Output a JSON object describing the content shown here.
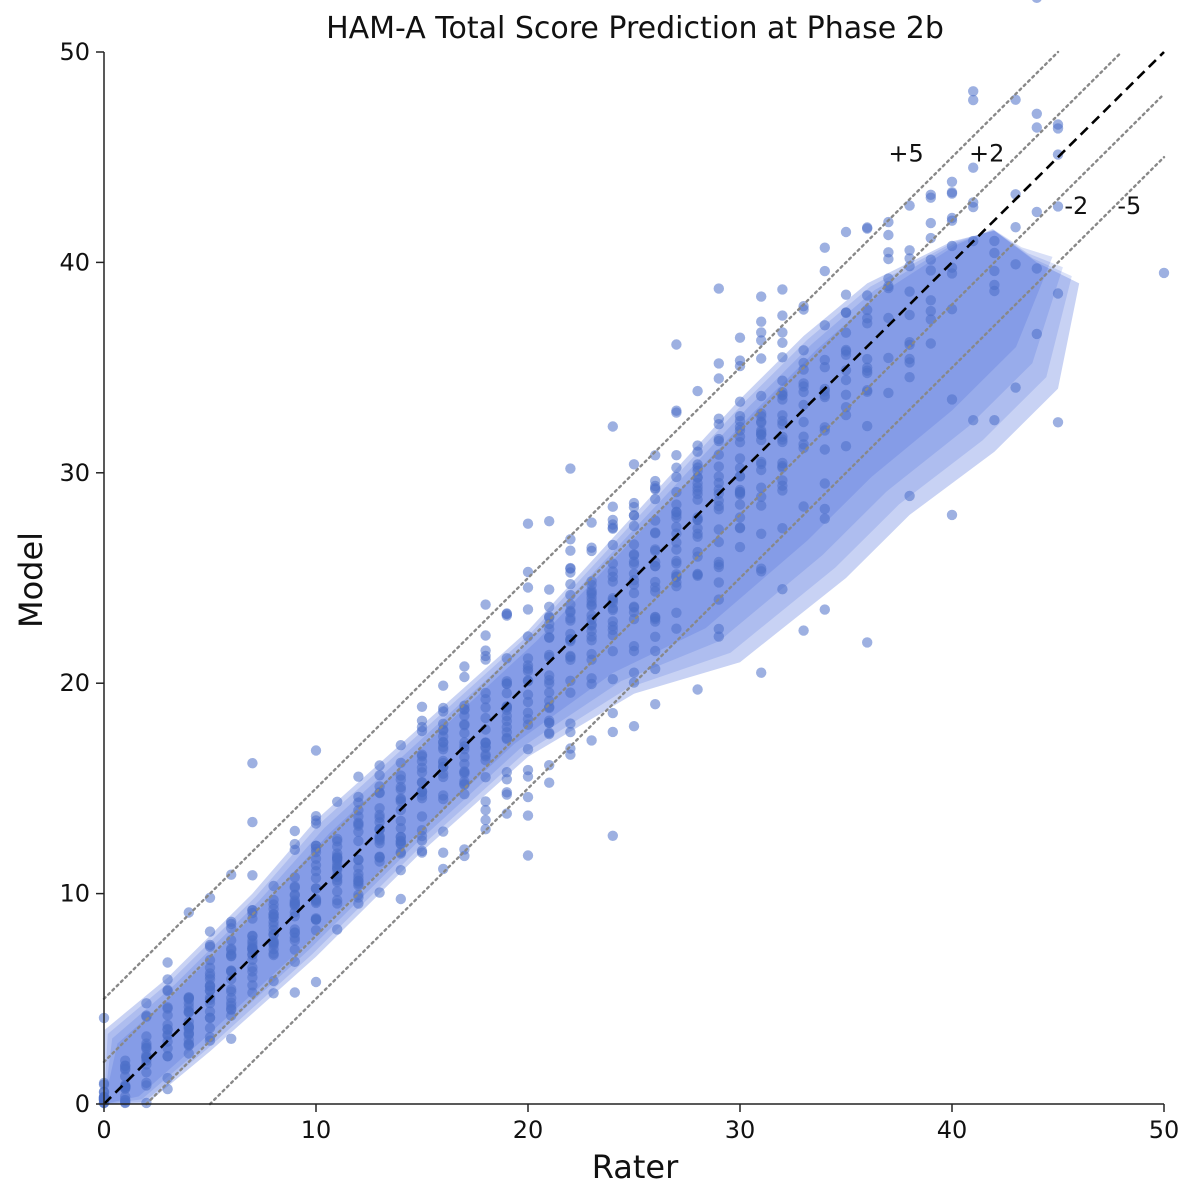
{
  "chart_data": {
    "type": "scatter",
    "title": "HAM-A Total Score Prediction at Phase 2b",
    "xlabel": "Rater",
    "ylabel": "Model",
    "xlim": [
      0,
      50
    ],
    "ylim": [
      0,
      50
    ],
    "xticks": [
      "0",
      "10",
      "20",
      "30",
      "40",
      "50"
    ],
    "yticks": [
      "0",
      "10",
      "20",
      "30",
      "40",
      "50"
    ],
    "grid": false,
    "point_color": "#4d6fc9",
    "density_color": "#3a5fd6",
    "reference_lines": [
      {
        "offset": 0,
        "style": "dashed",
        "color": "#000000"
      },
      {
        "offset": 2,
        "label": "+2",
        "style": "dotted",
        "color": "#888888"
      },
      {
        "offset": 5,
        "label": "+5",
        "style": "dotted",
        "color": "#888888"
      },
      {
        "offset": -2,
        "label": "-2",
        "style": "dotted",
        "color": "#888888"
      },
      {
        "offset": -5,
        "label": "-5",
        "style": "dotted",
        "color": "#888888"
      }
    ],
    "density_lower": [
      [
        0,
        0
      ],
      [
        2,
        0
      ],
      [
        5,
        2.5
      ],
      [
        10,
        7
      ],
      [
        15,
        12
      ],
      [
        20,
        16.5
      ],
      [
        25,
        19.5
      ],
      [
        30,
        21
      ],
      [
        35,
        25
      ],
      [
        38,
        28
      ],
      [
        42,
        31
      ],
      [
        45,
        34
      ],
      [
        46,
        39
      ],
      [
        44,
        40
      ],
      [
        42,
        41.5
      ],
      [
        40,
        41
      ]
    ],
    "density_upper": [
      [
        0,
        3.5
      ],
      [
        3,
        6
      ],
      [
        7,
        10
      ],
      [
        10,
        13.5
      ],
      [
        15,
        18
      ],
      [
        20,
        22.5
      ],
      [
        25,
        28
      ],
      [
        30,
        33.5
      ],
      [
        33,
        36.5
      ],
      [
        36,
        39
      ],
      [
        40,
        41
      ]
    ],
    "outliers": [
      [
        7,
        16.2
      ],
      [
        7,
        13.4
      ],
      [
        10,
        16.8
      ],
      [
        4,
        9.1
      ],
      [
        5,
        9.8
      ],
      [
        9,
        5.3
      ],
      [
        10,
        5.8
      ],
      [
        6,
        3.1
      ],
      [
        27,
        36.1
      ],
      [
        29,
        35.2
      ],
      [
        24,
        32.2
      ],
      [
        34,
        40.7
      ],
      [
        38,
        42.7
      ],
      [
        41,
        44.5
      ],
      [
        44,
        42.4
      ],
      [
        50,
        39.5
      ],
      [
        45,
        32.4
      ],
      [
        40,
        28
      ],
      [
        33,
        22.5
      ],
      [
        34,
        23.5
      ],
      [
        31,
        20.5
      ],
      [
        28,
        19.7
      ],
      [
        26,
        19
      ],
      [
        21,
        27.7
      ],
      [
        22,
        30.2
      ],
      [
        22,
        16.6
      ],
      [
        17,
        12.1
      ],
      [
        18,
        13.5
      ],
      [
        19,
        13.8
      ],
      [
        41,
        32.5
      ],
      [
        42,
        32.5
      ],
      [
        38,
        28.9
      ]
    ],
    "point_seed": 7
  }
}
